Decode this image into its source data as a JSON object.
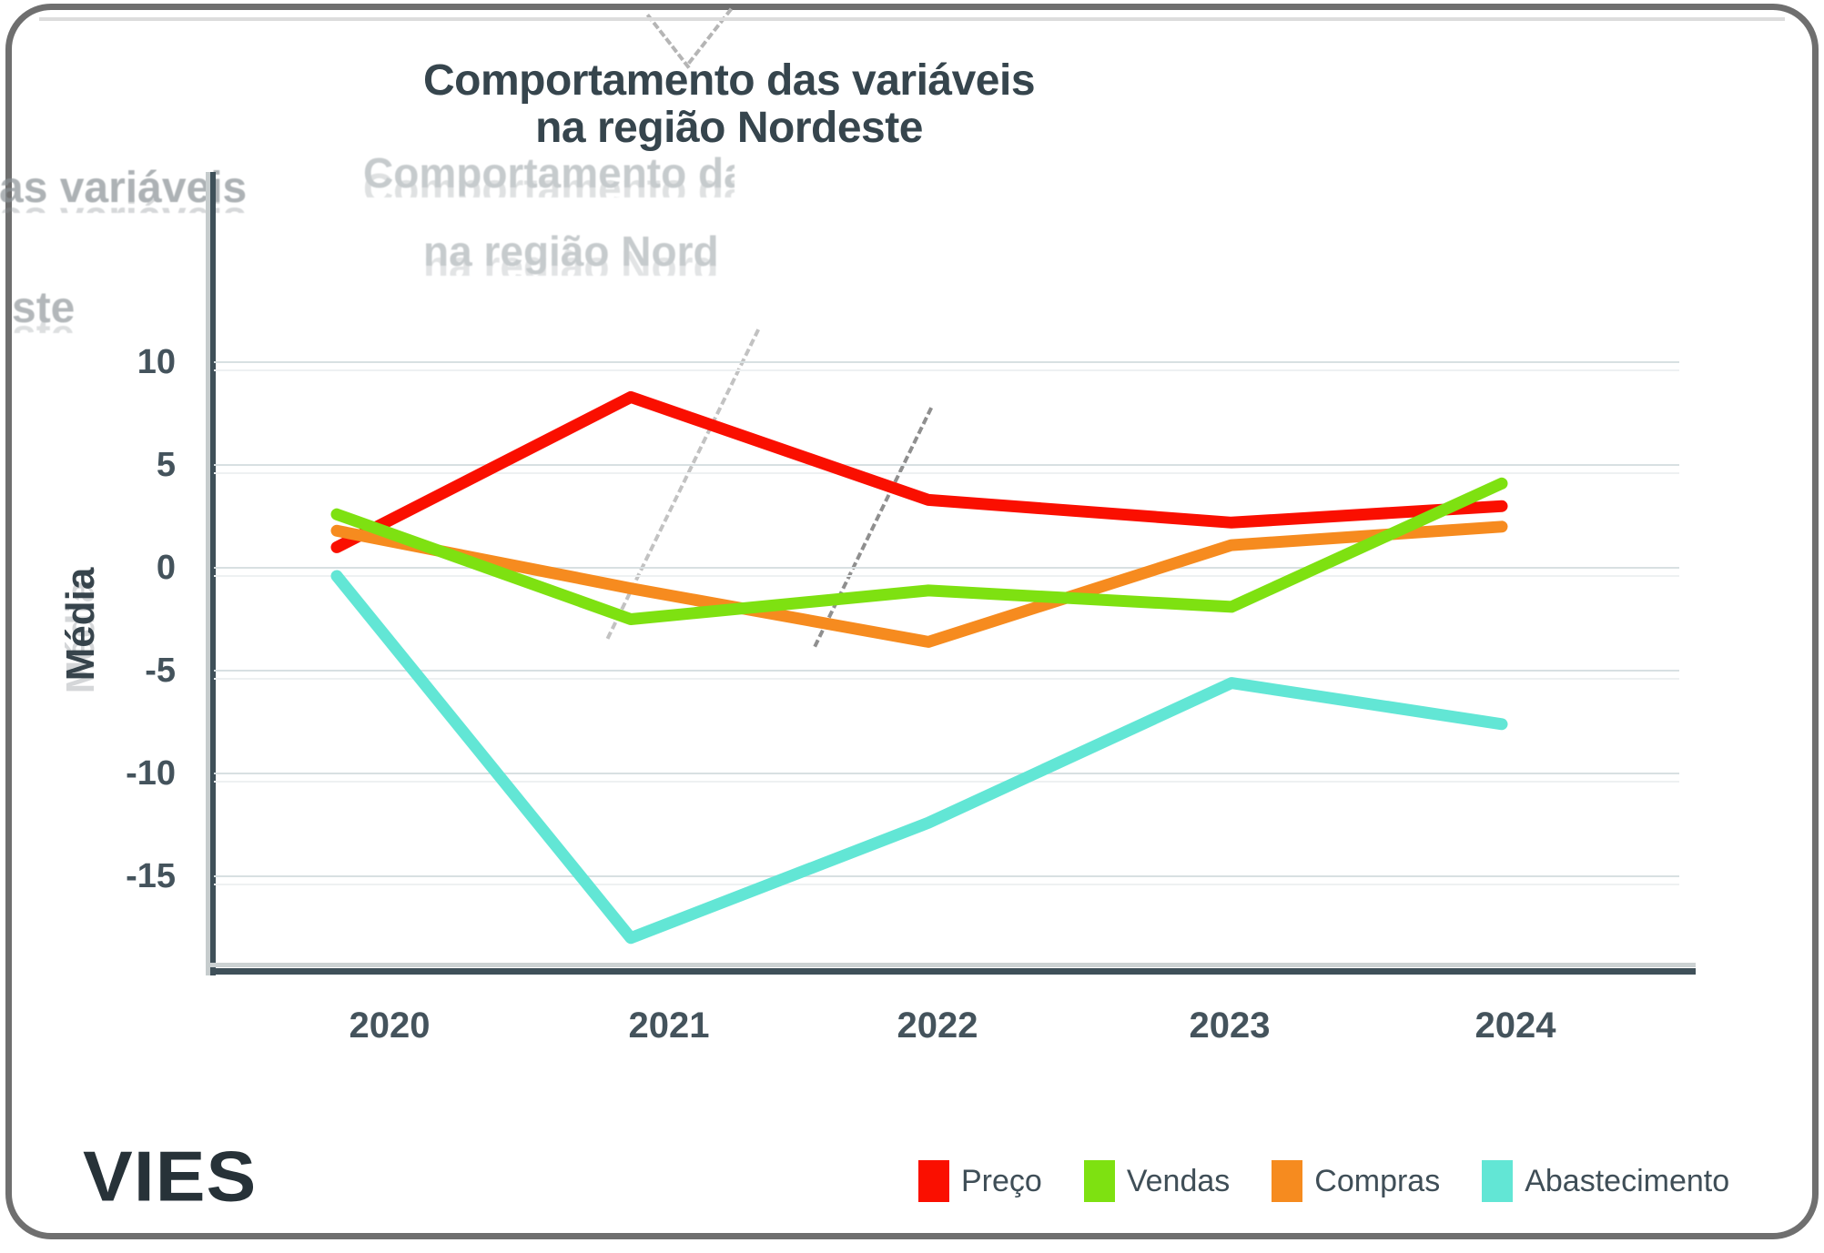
{
  "title": {
    "line1": "Comportamento das variáveis",
    "line2": "na região Nordeste"
  },
  "y_axis": {
    "label": "Média",
    "tick_labels": [
      "10",
      "5",
      "0",
      "-5",
      "-10",
      "-15"
    ],
    "tick_values": [
      10,
      5,
      0,
      -5,
      -10,
      -15
    ]
  },
  "x_axis": {
    "labels": [
      "2020",
      "2021",
      "2022",
      "2023",
      "2024"
    ]
  },
  "legend": [
    {
      "label": "Preço",
      "color": "#fa0f00"
    },
    {
      "label": "Vendas",
      "color": "#7ee111"
    },
    {
      "label": "Compras",
      "color": "#f68b1f"
    },
    {
      "label": "Abastecimento",
      "color": "#62e6d5"
    }
  ],
  "logo_text": "VIES",
  "ghost_artifacts": {
    "center_line1": "Comportamento da",
    "center_line2": "na região Nord",
    "left_top": "as variáveis",
    "left_bottom": "ste"
  },
  "chart_data": {
    "type": "line",
    "title": "Comportamento das variáveis na região Nordeste",
    "xlabel": "",
    "ylabel": "Média",
    "categories": [
      "2020",
      "2021",
      "2022",
      "2023",
      "2024"
    ],
    "series": [
      {
        "name": "Preço",
        "color": "#fa0f00",
        "values": [
          1.0,
          8.3,
          3.3,
          2.2,
          3.0
        ]
      },
      {
        "name": "Vendas",
        "color": "#7ee111",
        "values": [
          2.6,
          -2.5,
          -1.1,
          -1.9,
          4.1
        ]
      },
      {
        "name": "Compras",
        "color": "#f68b1f",
        "values": [
          1.8,
          -1.0,
          -3.6,
          1.1,
          2.0
        ]
      },
      {
        "name": "Abastecimento",
        "color": "#62e6d5",
        "values": [
          -0.4,
          -18.0,
          -12.4,
          -5.6,
          -7.6
        ]
      }
    ],
    "ylim": [
      -20,
      19
    ],
    "yticks": [
      10,
      5,
      0,
      -5,
      -10,
      -15
    ],
    "grid": true,
    "legend_position": "bottom"
  }
}
